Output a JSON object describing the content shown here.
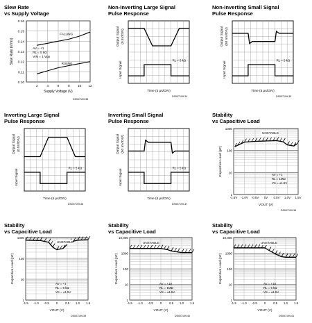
{
  "panels": [
    {
      "title1": "Slew Rate",
      "title2": "vs Supply Voltage",
      "code": "DS007199-38"
    },
    {
      "title1": "Non-Inverting Large Signal",
      "title2": "Pulse Response",
      "code": "DS007199-34"
    },
    {
      "title1": "Non-Inverting Small Signal",
      "title2": "Pulse Response",
      "code": "DS007199-35"
    },
    {
      "title1": "Inverting Large Signal",
      "title2": "Pulse Response",
      "code": "DS007199-36"
    },
    {
      "title1": "Inverting Small Signal",
      "title2": "Pulse Response",
      "code": "DS007199-37"
    },
    {
      "title1": "Stability",
      "title2": "vs Capacitive Load",
      "code": "DS007199-38"
    },
    {
      "title1": "Stability",
      "title2": "vs Capacitive Load",
      "code": "DS007199-39"
    },
    {
      "title1": "Stability",
      "title2": "vs Capacitive Load",
      "code": "DS007199-40"
    },
    {
      "title1": "Stability",
      "title2": "vs Capacitive Load",
      "code": "DS007199-41"
    }
  ],
  "chart_data": [
    {
      "type": "line",
      "title": "Slew Rate vs Supply Voltage",
      "xlabel": "Supply Voltage (V)",
      "ylabel": "Slew Rate (V/ms)",
      "xlim": [
        0,
        12
      ],
      "ylim": [
        0.1,
        0.16
      ],
      "xticks": [
        "2",
        "4",
        "6",
        "8",
        "10",
        "12"
      ],
      "yticks": [
        "0.10",
        "0.11",
        "0.12",
        "0.13",
        "0.14",
        "0.15",
        "0.16"
      ],
      "annotations": [
        "FALLING",
        "RISING",
        "AV = +1",
        "RL = 5 kΩ",
        "VIN = 1 Vpp"
      ],
      "series": [
        {
          "name": "FALLING",
          "x": [
            2,
            4,
            6,
            8,
            10,
            12
          ],
          "values": [
            0.136,
            0.138,
            0.14,
            0.142,
            0.145,
            0.149
          ]
        },
        {
          "name": "RISING",
          "x": [
            2,
            4,
            6,
            8,
            10,
            12
          ],
          "values": [
            0.108,
            0.111,
            0.114,
            0.116,
            0.118,
            0.12
          ]
        }
      ]
    },
    {
      "type": "line",
      "xlabel": "Time (5 µs/DIV)",
      "ylabel_top": "Output Signal",
      "ylabel_top_unit": "(0.5V/DIV)",
      "ylabel_bottom": "Input Signal",
      "annotations": [
        "RL = 5 kΩ"
      ]
    },
    {
      "type": "line",
      "xlabel": "Time (5 µs/DIV)",
      "ylabel_top": "Output Signal",
      "ylabel_top_unit": "(50 mV/DIV)",
      "ylabel_bottom": "Input Signal",
      "annotations": [
        "RL = 5 kΩ"
      ]
    },
    {
      "type": "line",
      "xlabel": "Time (5 µs/DIV)",
      "ylabel_top": "Output Signal",
      "ylabel_top_unit": "(0.5V/DIV)",
      "ylabel_bottom": "Input Signal",
      "annotations": [
        "RL = 5 kΩ"
      ]
    },
    {
      "type": "line",
      "xlabel": "Time (5 µs/DIV)",
      "ylabel_top": "Output Signal",
      "ylabel_top_unit": "(50 mV/DIV)",
      "ylabel_bottom": "Input Signal",
      "annotations": [
        "RL = 5 kΩ"
      ]
    },
    {
      "type": "line",
      "xlabel": "VOUT (V)",
      "ylabel": "Capacitive Load (pF)",
      "xlim": [
        -1.5,
        1.5
      ],
      "ylim": [
        1,
        1000
      ],
      "yscale": "log",
      "xticks": [
        "-1.5V",
        "-1.0V",
        "-0.5V",
        "0V",
        "0.5V",
        "1.0V",
        "1.5V"
      ],
      "yticks": [
        "1000",
        "100",
        "10",
        "1"
      ],
      "annotations": [
        "UNSTABLE",
        "AV = +1",
        "RL = 1MΩ",
        "VS = ±1.5V"
      ],
      "series": [
        {
          "name": "boundary",
          "x": [
            -1.45,
            -1.0,
            -0.5,
            0,
            0.5,
            0.8,
            1.0,
            1.3,
            1.45
          ],
          "values": [
            150,
            240,
            260,
            270,
            280,
            250,
            180,
            160,
            200
          ]
        }
      ]
    },
    {
      "type": "line",
      "xlabel": "VOUT (V)",
      "ylabel": "Capacitive Load (pF)",
      "xlim": [
        -1.5,
        1.5
      ],
      "ylim": [
        1,
        1000
      ],
      "yscale": "log",
      "xticks": [
        "-1.5",
        "-1.0",
        "-0.5",
        "0",
        "0.5",
        "1.0",
        "1.5"
      ],
      "yticks": [
        "1000",
        "100",
        "10",
        "1"
      ],
      "annotations": [
        "UNSTABLE",
        "AV = +1",
        "RL = 5 kΩ",
        "VS = ±1.5V"
      ],
      "series": [
        {
          "name": "boundary",
          "x": [
            -1.5,
            -0.8,
            -0.4,
            -0.2,
            0,
            0.3,
            0.6,
            1.0,
            1.5
          ],
          "values": [
            750,
            720,
            600,
            350,
            260,
            300,
            600,
            750,
            780
          ]
        }
      ]
    },
    {
      "type": "line",
      "xlabel": "VOUT (V)",
      "ylabel": "Capacitive Load (pF)",
      "xlim": [
        -1.5,
        1.5
      ],
      "ylim": [
        1,
        10000
      ],
      "yscale": "log",
      "xticks": [
        "-1.5",
        "-1.0",
        "-0.5",
        "0",
        "0.5",
        "1.0",
        "1.5"
      ],
      "yticks": [
        "10,000",
        "1000",
        "100",
        "10",
        "1"
      ],
      "annotations": [
        "UNSTABLE",
        "AV = +10",
        "RL = 1MΩ",
        "VS = ±1.5V"
      ],
      "series": [
        {
          "name": "boundary",
          "x": [
            -1.5,
            -0.5,
            0,
            0.3,
            0.5,
            0.8,
            1.0,
            1.5
          ],
          "values": [
            2000,
            2000,
            2000,
            1700,
            1400,
            1200,
            1100,
            1100
          ]
        }
      ]
    },
    {
      "type": "line",
      "xlabel": "VOUT (V)",
      "ylabel": "Capacitive Load (pF)",
      "xlim": [
        -1.5,
        1.5
      ],
      "ylim": [
        1,
        10000
      ],
      "yscale": "log",
      "xticks": [
        "-1.5",
        "-1.0",
        "-0.5",
        "0",
        "0.5",
        "1.0",
        "1.5"
      ],
      "yticks": [
        "10,000",
        "1000",
        "100",
        "10",
        "1"
      ],
      "annotations": [
        "UNSTABLE",
        "AV = +10",
        "RL = 5 kΩ",
        "VS = ±1.5V"
      ],
      "series": [
        {
          "name": "boundary",
          "x": [
            -1.5,
            -0.5,
            0,
            0.2,
            0.5,
            0.8,
            1.0,
            1.5
          ],
          "values": [
            2200,
            2200,
            2200,
            1500,
            900,
            600,
            550,
            550
          ]
        }
      ]
    }
  ]
}
